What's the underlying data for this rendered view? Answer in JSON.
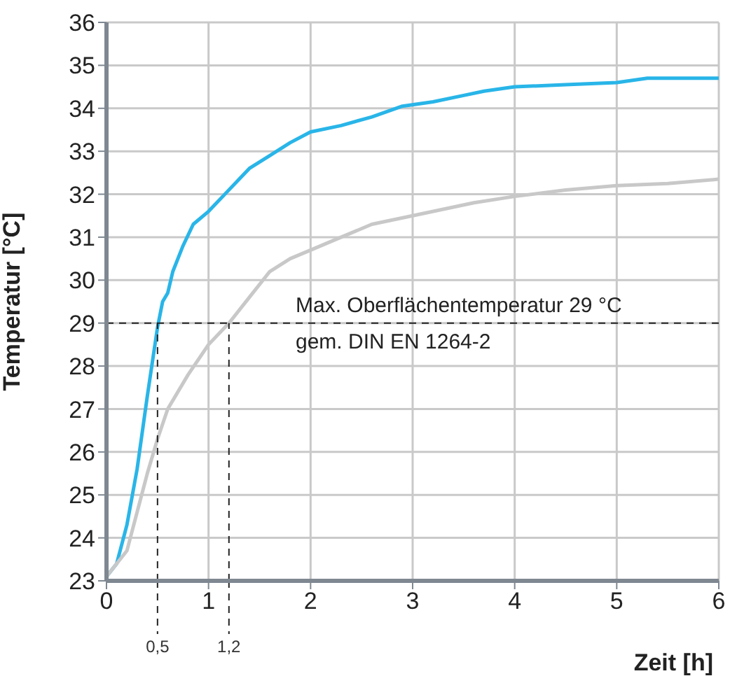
{
  "chart_data": {
    "type": "line",
    "xlabel": "Zeit [h]",
    "ylabel": "Temperatur [°C]",
    "xlim": [
      0,
      6
    ],
    "xticks": [
      0,
      1,
      2,
      3,
      4,
      5,
      6
    ],
    "ylim": [
      23,
      36
    ],
    "yticks": [
      23,
      24,
      25,
      26,
      27,
      28,
      29,
      30,
      31,
      32,
      33,
      34,
      35,
      36
    ],
    "grid": true,
    "marker": "none",
    "line_style": "solid",
    "series": [
      {
        "color": "#29b5e8",
        "x": [
          0,
          0.1,
          0.2,
          0.3,
          0.4,
          0.5,
          0.55,
          0.6,
          0.65,
          0.75,
          0.85,
          1,
          1.2,
          1.4,
          1.6,
          1.8,
          2,
          2.3,
          2.6,
          2.9,
          3.2,
          3.5,
          3.7,
          4,
          4.5,
          5,
          5.3,
          6
        ],
        "values": [
          23.1,
          23.4,
          24.3,
          25.6,
          27.3,
          28.9,
          29.5,
          29.7,
          30.2,
          30.8,
          31.3,
          31.6,
          32.1,
          32.6,
          32.9,
          33.2,
          33.45,
          33.6,
          33.8,
          34.05,
          34.15,
          34.3,
          34.4,
          34.5,
          34.55,
          34.6,
          34.7,
          34.7
        ]
      },
      {
        "color": "#c8c8c8",
        "x": [
          0,
          0.2,
          0.3,
          0.4,
          0.5,
          0.6,
          0.8,
          1,
          1.2,
          1.4,
          1.6,
          1.8,
          2,
          2.3,
          2.6,
          3,
          3.3,
          3.6,
          4,
          4.5,
          5,
          5.5,
          6
        ],
        "values": [
          23.1,
          23.7,
          24.6,
          25.5,
          26.3,
          27,
          27.8,
          28.5,
          29,
          29.6,
          30.2,
          30.5,
          30.7,
          31,
          31.3,
          31.5,
          31.65,
          31.8,
          31.95,
          32.1,
          32.2,
          32.25,
          32.35
        ]
      }
    ],
    "ref_lines": [
      {
        "axis": "y",
        "value": 29,
        "label": "Max. Oberflächentemperatur 29 °C\ngem. DIN EN 1264-2",
        "line_style": "dashed",
        "color": "#222222"
      },
      {
        "axis": "x",
        "value": 0.5,
        "label": "0,5",
        "line_style": "dashed",
        "color": "#222222"
      },
      {
        "axis": "x",
        "value": 1.2,
        "label": "1,2",
        "line_style": "dashed",
        "color": "#222222"
      }
    ]
  }
}
